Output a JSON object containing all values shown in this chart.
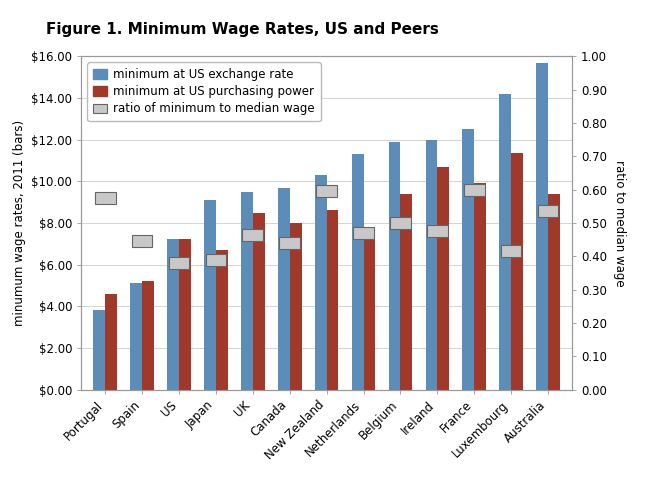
{
  "title": "Figure 1. Minimum Wage Rates, US and Peers",
  "ylabel_left": "minumum wage rates, 2011 (bars)",
  "ylabel_right": "ratio to median wage",
  "countries": [
    "Portugal",
    "Spain",
    "US",
    "Japan",
    "UK",
    "Canada",
    "New Zealand",
    "Netherlands",
    "Belgium",
    "Ireland",
    "France",
    "Luxembourg",
    "Australia"
  ],
  "exchange_rate": [
    3.8,
    5.1,
    7.25,
    9.1,
    9.5,
    9.7,
    10.3,
    11.3,
    11.9,
    12.0,
    12.5,
    14.2,
    15.7
  ],
  "purchasing_power": [
    4.6,
    5.2,
    7.25,
    6.7,
    8.5,
    8.0,
    8.6,
    7.6,
    9.4,
    10.7,
    9.9,
    11.35,
    9.4
  ],
  "ratio": [
    0.575,
    0.445,
    0.38,
    0.39,
    0.465,
    0.44,
    0.595,
    0.47,
    0.5,
    0.475,
    0.6,
    0.415,
    0.535
  ],
  "bar_color_blue": "#5B8DB8",
  "bar_color_red": "#A0392A",
  "ratio_bar_facecolor": "#C8C8C8",
  "ratio_bar_edgecolor": "#666666",
  "plot_bg": "#FFFFFF",
  "figure_bg": "#FFFFFF",
  "grid_color": "#CCCCCC",
  "border_color": "#999999",
  "ylim_left": [
    0,
    16
  ],
  "ylim_right": [
    0,
    1.0
  ],
  "yticks_left": [
    0,
    2,
    4,
    6,
    8,
    10,
    12,
    14,
    16
  ],
  "yticks_right": [
    0.0,
    0.1,
    0.2,
    0.3,
    0.4,
    0.5,
    0.6,
    0.7,
    0.8,
    0.9,
    1.0
  ],
  "bar_width": 0.32,
  "ratio_bar_halfwidth": 0.28,
  "ratio_bar_halfheight": 0.018,
  "legend_exchange": "minimum at US exchange rate",
  "legend_ppp": "minimum at US purchasing power",
  "legend_ratio": "ratio of minimum to median wage",
  "tick_fontsize": 8.5,
  "label_fontsize": 8.5,
  "title_fontsize": 11.0,
  "legend_fontsize": 8.5
}
